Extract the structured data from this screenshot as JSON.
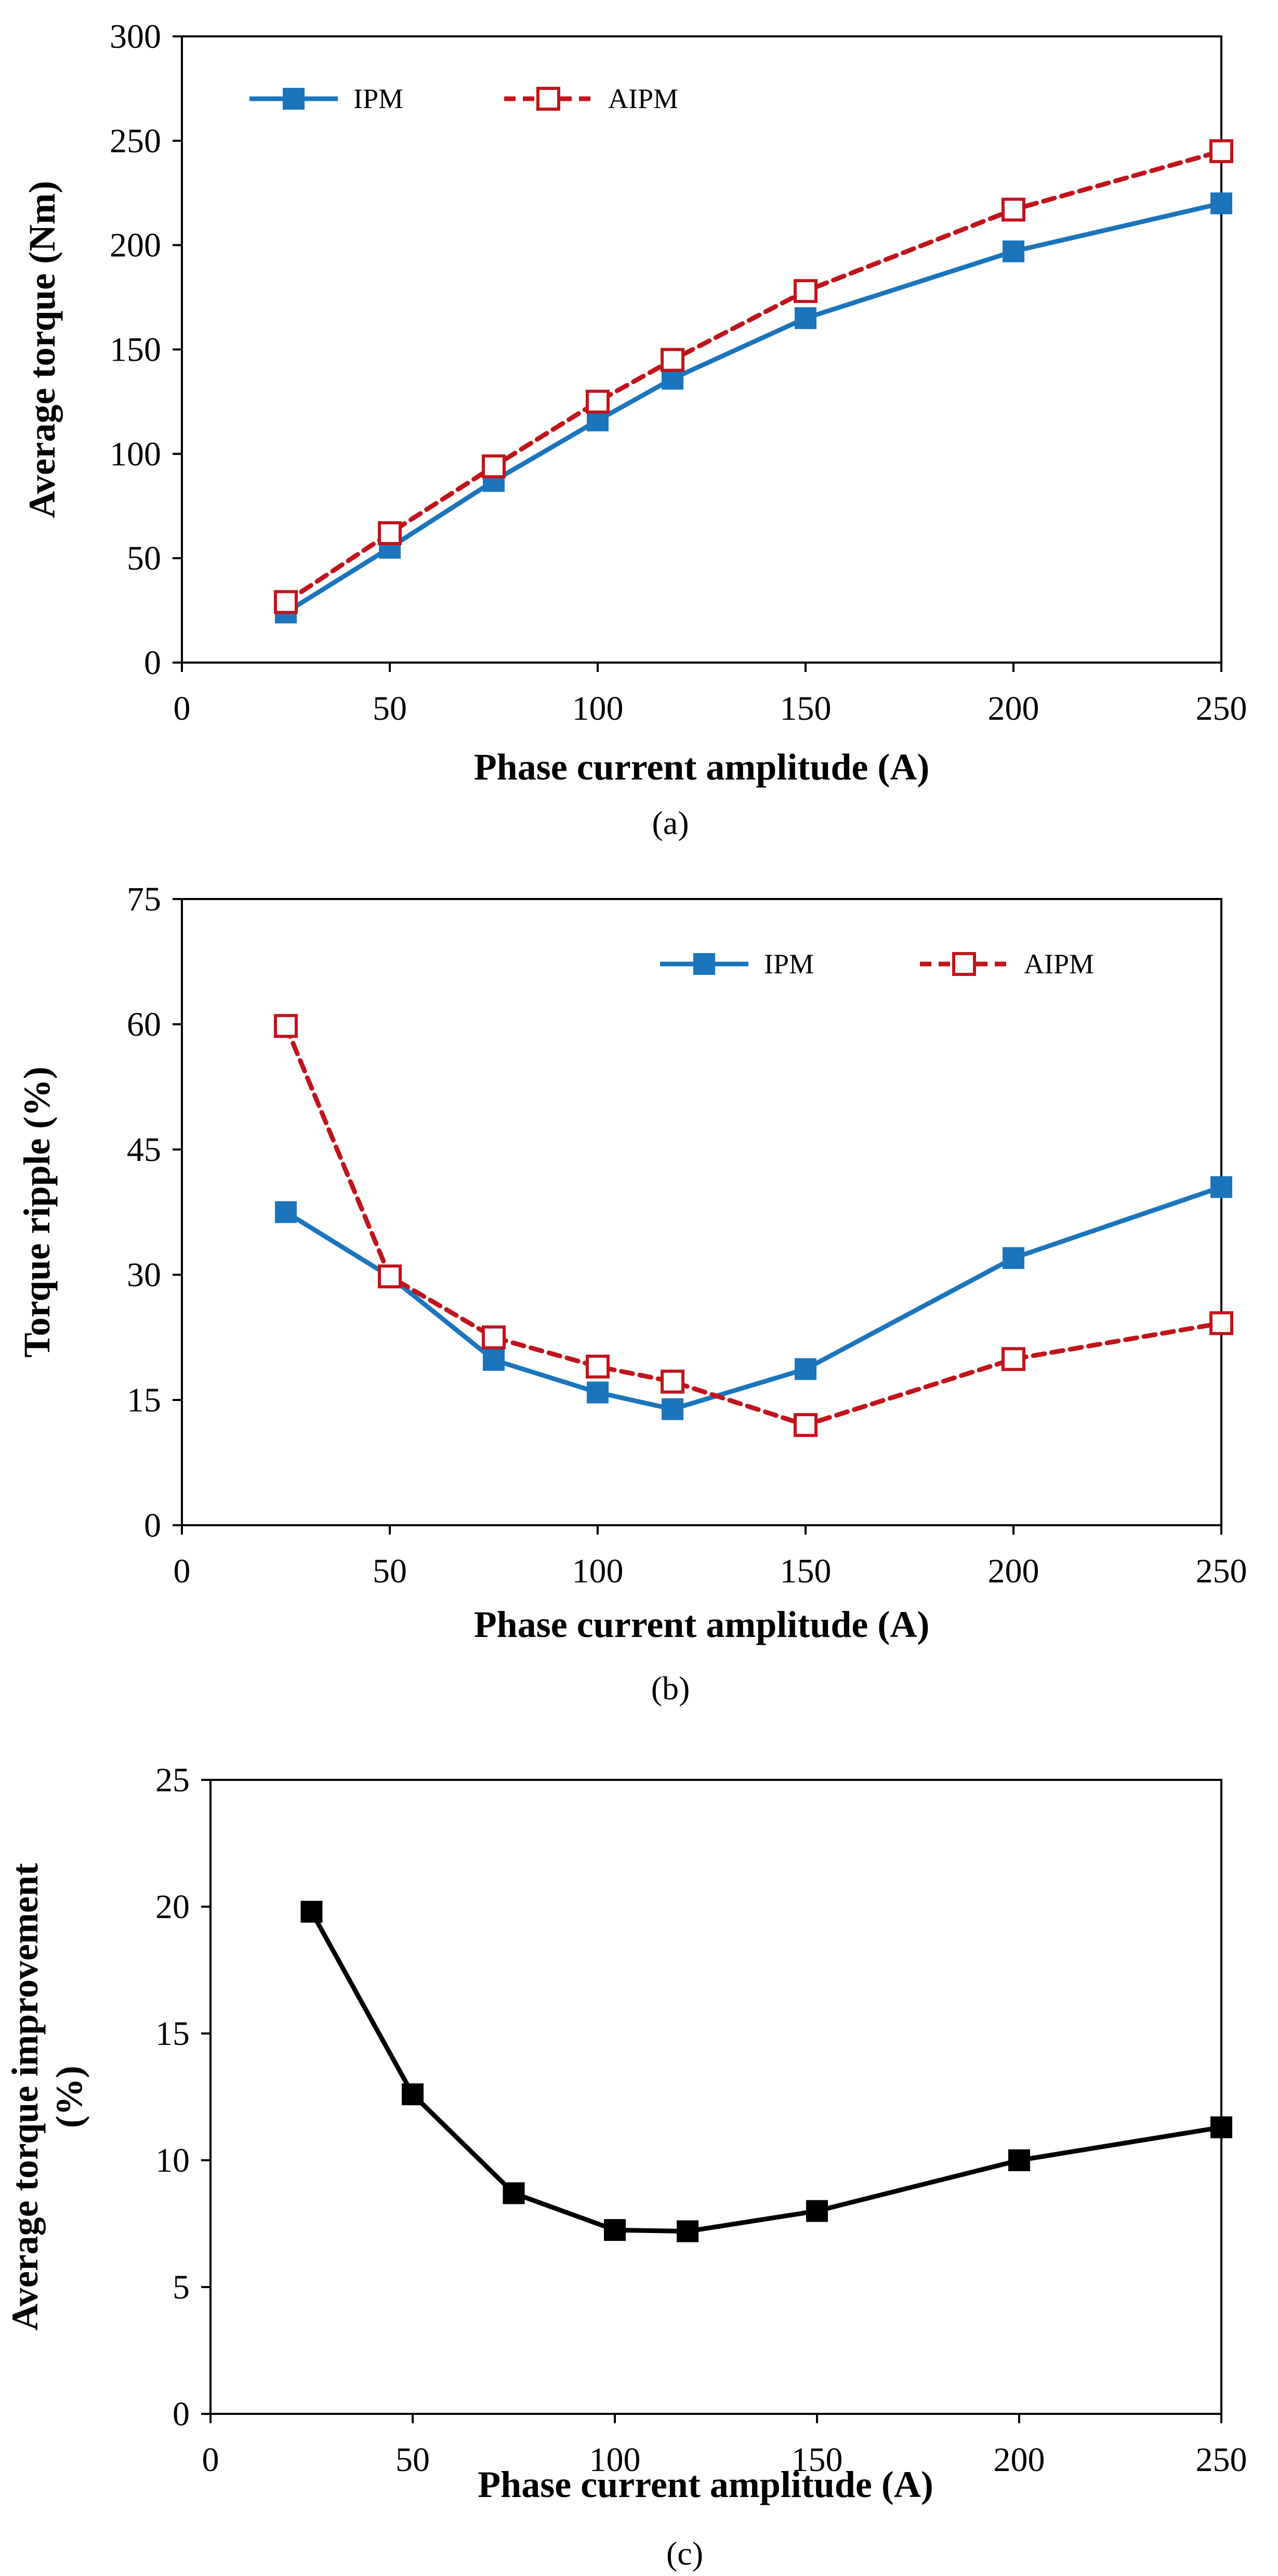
{
  "figure": {
    "captions": [
      "(a)",
      "(b)",
      "(c)"
    ]
  },
  "chart_data": [
    {
      "type": "line",
      "id": "a",
      "caption": "(a)",
      "xlabel": "Phase current amplitude (A)",
      "ylabel": "Average torque (Nm)",
      "xlim": [
        0,
        250
      ],
      "ylim": [
        0,
        300
      ],
      "xticks": [
        0,
        50,
        100,
        150,
        200,
        250
      ],
      "yticks": [
        0,
        50,
        100,
        150,
        200,
        250,
        300
      ],
      "grid": false,
      "legend_position": "top-left",
      "x": [
        25,
        50,
        75,
        100,
        118,
        150,
        200,
        250
      ],
      "series": [
        {
          "name": "IPM",
          "values": [
            24,
            55,
            87,
            116,
            136,
            165,
            197,
            220
          ],
          "color": "#1b75bc",
          "style": "solid",
          "marker": "filled-square"
        },
        {
          "name": "AIPM",
          "values": [
            29,
            62,
            94,
            125,
            145,
            178,
            217,
            245
          ],
          "color": "#c0141c",
          "style": "dashed",
          "marker": "open-square"
        }
      ]
    },
    {
      "type": "line",
      "id": "b",
      "caption": "(b)",
      "xlabel": "Phase current amplitude (A)",
      "ylabel": "Torque ripple (%)",
      "xlim": [
        0,
        250
      ],
      "ylim": [
        0,
        75
      ],
      "xticks": [
        0,
        50,
        100,
        150,
        200,
        250
      ],
      "yticks": [
        0,
        15,
        30,
        45,
        60,
        75
      ],
      "grid": false,
      "legend_position": "top-right",
      "x": [
        25,
        50,
        75,
        100,
        118,
        150,
        200,
        250
      ],
      "series": [
        {
          "name": "IPM",
          "values": [
            37.5,
            29.8,
            19.8,
            15.9,
            13.9,
            18.7,
            32,
            40.5
          ],
          "color": "#1b75bc",
          "style": "solid",
          "marker": "filled-square"
        },
        {
          "name": "AIPM",
          "values": [
            59.8,
            29.8,
            22.5,
            19,
            17.2,
            12,
            19.9,
            24.2
          ],
          "color": "#c0141c",
          "style": "dashed",
          "marker": "open-square"
        }
      ]
    },
    {
      "type": "line",
      "id": "c",
      "caption": "(c)",
      "xlabel": "Phase current amplitude (A)",
      "ylabel": "Average torque improvement (%)",
      "xlim": [
        0,
        250
      ],
      "ylim": [
        0,
        25
      ],
      "xticks": [
        0,
        50,
        100,
        150,
        200,
        250
      ],
      "yticks": [
        0,
        5,
        10,
        15,
        20,
        25
      ],
      "grid": false,
      "legend_position": "none",
      "x": [
        25,
        50,
        75,
        100,
        118,
        150,
        200,
        250
      ],
      "series": [
        {
          "name": "Improvement",
          "values": [
            19.8,
            12.6,
            8.7,
            7.25,
            7.2,
            8,
            10,
            11.3
          ],
          "color": "#000000",
          "style": "solid",
          "marker": "filled-square"
        }
      ]
    }
  ]
}
